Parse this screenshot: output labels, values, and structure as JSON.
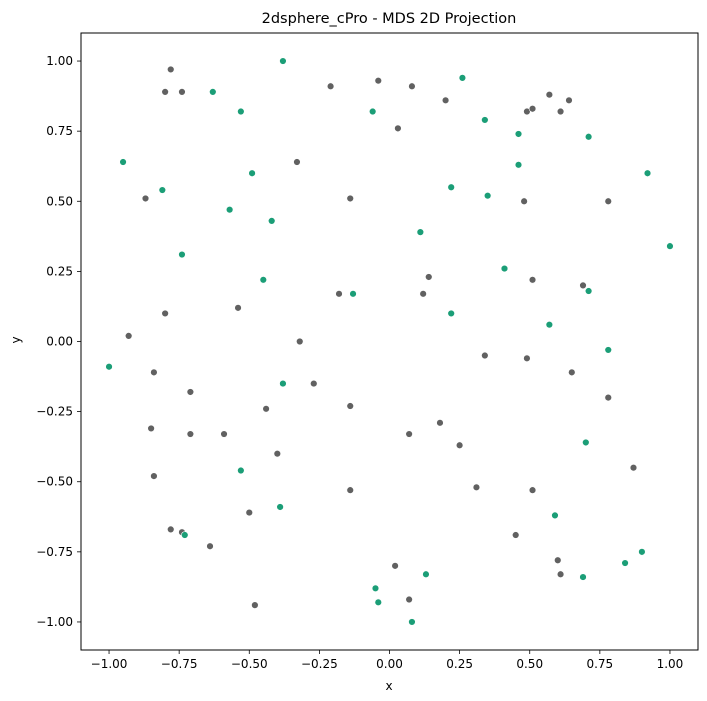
{
  "chart_data": {
    "type": "scatter",
    "title": "2dsphere_cPro - MDS 2D Projection",
    "xlabel": "x",
    "ylabel": "y",
    "xlim": [
      -1.1,
      1.1
    ],
    "ylim": [
      -1.1,
      1.1
    ],
    "xticks": [
      -1.0,
      -0.75,
      -0.5,
      -0.25,
      0.0,
      0.25,
      0.5,
      0.75,
      1.0
    ],
    "yticks": [
      -1.0,
      -0.75,
      -0.5,
      -0.25,
      0.0,
      0.25,
      0.5,
      0.75,
      1.0
    ],
    "xtick_labels": [
      "−1.00",
      "−0.75",
      "−0.50",
      "−0.25",
      "0.00",
      "0.25",
      "0.50",
      "0.75",
      "1.00"
    ],
    "ytick_labels": [
      "−1.00",
      "−0.75",
      "−0.50",
      "−0.25",
      "0.00",
      "0.25",
      "0.50",
      "0.75",
      "1.00"
    ],
    "grid": false,
    "legend": "none",
    "series": [
      {
        "color": "#616161",
        "points": [
          [
            -0.78,
            0.97
          ],
          [
            -0.8,
            0.89
          ],
          [
            -0.74,
            0.89
          ],
          [
            -0.21,
            0.91
          ],
          [
            -0.04,
            0.93
          ],
          [
            0.08,
            0.91
          ],
          [
            0.2,
            0.86
          ],
          [
            0.03,
            0.76
          ],
          [
            0.57,
            0.88
          ],
          [
            0.49,
            0.82
          ],
          [
            0.51,
            0.83
          ],
          [
            0.61,
            0.82
          ],
          [
            0.64,
            0.86
          ],
          [
            -0.33,
            0.64
          ],
          [
            -0.87,
            0.51
          ],
          [
            -0.14,
            0.51
          ],
          [
            0.48,
            0.5
          ],
          [
            0.78,
            0.5
          ],
          [
            0.14,
            0.23
          ],
          [
            -0.18,
            0.17
          ],
          [
            0.12,
            0.17
          ],
          [
            0.51,
            0.22
          ],
          [
            0.69,
            0.2
          ],
          [
            -0.8,
            0.1
          ],
          [
            -0.54,
            0.12
          ],
          [
            -0.93,
            0.02
          ],
          [
            -0.32,
            0.0
          ],
          [
            0.34,
            -0.05
          ],
          [
            0.49,
            -0.06
          ],
          [
            -0.84,
            -0.11
          ],
          [
            0.65,
            -0.11
          ],
          [
            -0.71,
            -0.18
          ],
          [
            -0.27,
            -0.15
          ],
          [
            0.78,
            -0.2
          ],
          [
            -0.44,
            -0.24
          ],
          [
            -0.14,
            -0.23
          ],
          [
            -0.85,
            -0.31
          ],
          [
            -0.71,
            -0.33
          ],
          [
            -0.59,
            -0.33
          ],
          [
            0.07,
            -0.33
          ],
          [
            0.18,
            -0.29
          ],
          [
            0.25,
            -0.37
          ],
          [
            -0.4,
            -0.4
          ],
          [
            -0.84,
            -0.48
          ],
          [
            0.87,
            -0.45
          ],
          [
            -0.5,
            -0.61
          ],
          [
            -0.14,
            -0.53
          ],
          [
            0.31,
            -0.52
          ],
          [
            0.51,
            -0.53
          ],
          [
            -0.78,
            -0.67
          ],
          [
            -0.74,
            -0.68
          ],
          [
            -0.64,
            -0.73
          ],
          [
            0.45,
            -0.69
          ],
          [
            0.6,
            -0.78
          ],
          [
            0.02,
            -0.8
          ],
          [
            0.61,
            -0.83
          ],
          [
            0.07,
            -0.92
          ],
          [
            -0.48,
            -0.94
          ]
        ]
      },
      {
        "color": "#1b9e77",
        "points": [
          [
            -0.38,
            1.0
          ],
          [
            0.26,
            0.94
          ],
          [
            -0.63,
            0.89
          ],
          [
            -0.53,
            0.82
          ],
          [
            -0.06,
            0.82
          ],
          [
            0.34,
            0.79
          ],
          [
            0.46,
            0.74
          ],
          [
            0.71,
            0.73
          ],
          [
            -0.95,
            0.64
          ],
          [
            0.46,
            0.63
          ],
          [
            -0.49,
            0.6
          ],
          [
            0.92,
            0.6
          ],
          [
            -0.81,
            0.54
          ],
          [
            0.22,
            0.55
          ],
          [
            0.35,
            0.52
          ],
          [
            -0.57,
            0.47
          ],
          [
            -0.42,
            0.43
          ],
          [
            0.11,
            0.39
          ],
          [
            -0.74,
            0.31
          ],
          [
            1.0,
            0.34
          ],
          [
            0.41,
            0.26
          ],
          [
            -0.45,
            0.22
          ],
          [
            -0.13,
            0.17
          ],
          [
            0.71,
            0.18
          ],
          [
            0.22,
            0.1
          ],
          [
            0.57,
            0.06
          ],
          [
            -1.0,
            -0.09
          ],
          [
            0.78,
            -0.03
          ],
          [
            -0.38,
            -0.15
          ],
          [
            0.7,
            -0.36
          ],
          [
            -0.53,
            -0.46
          ],
          [
            -0.39,
            -0.59
          ],
          [
            0.59,
            -0.62
          ],
          [
            -0.73,
            -0.69
          ],
          [
            0.9,
            -0.75
          ],
          [
            0.84,
            -0.79
          ],
          [
            0.13,
            -0.83
          ],
          [
            0.69,
            -0.84
          ],
          [
            -0.05,
            -0.88
          ],
          [
            -0.04,
            -0.93
          ],
          [
            0.08,
            -1.0
          ]
        ]
      }
    ]
  }
}
